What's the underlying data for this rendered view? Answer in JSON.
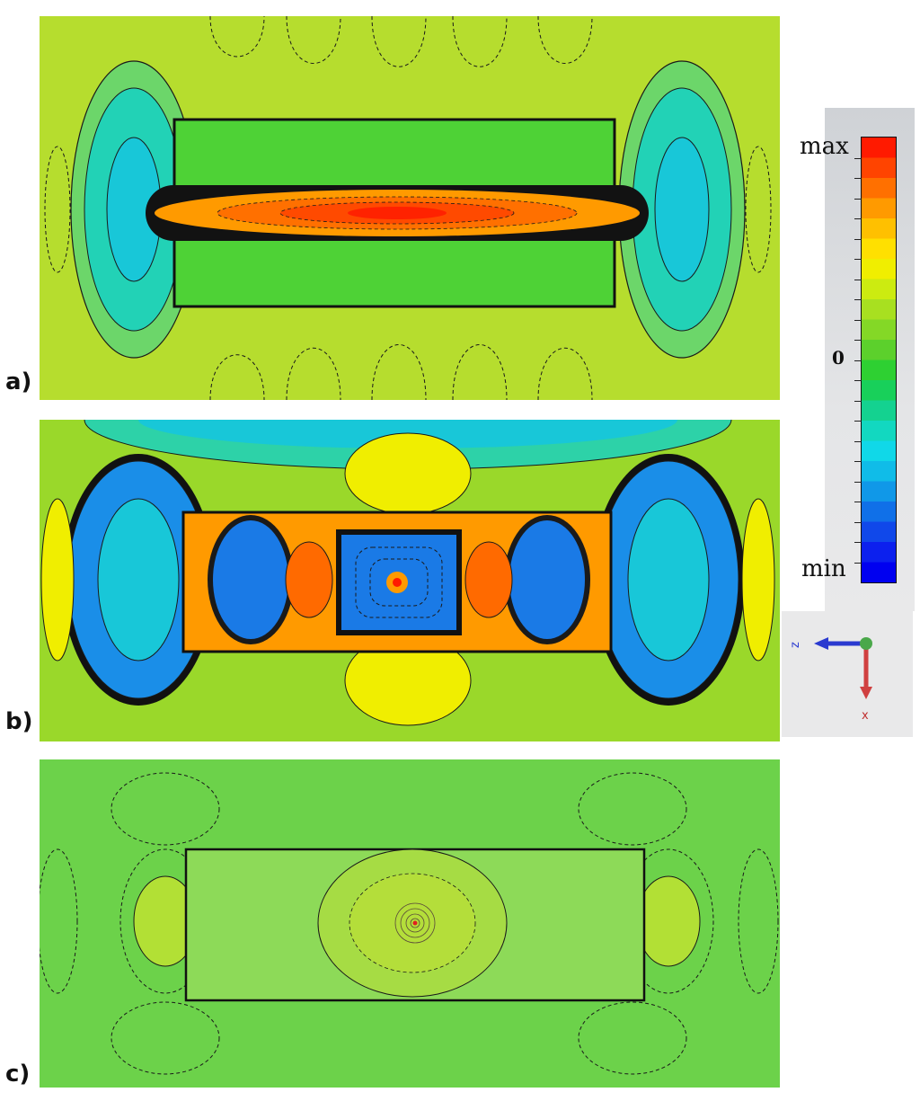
{
  "panels": [
    {
      "label": "a)"
    },
    {
      "label": "b)"
    },
    {
      "label": "c)"
    }
  ],
  "colorbar": {
    "max_label": "max",
    "mid_label": "0",
    "min_label": "min",
    "colors": [
      "#ff1a00",
      "#ff4400",
      "#ff7000",
      "#ff9a00",
      "#ffc000",
      "#ffe000",
      "#f0ee00",
      "#cceb10",
      "#a8e020",
      "#84d826",
      "#5cd02c",
      "#2ed032",
      "#18d05a",
      "#14d290",
      "#12d8c0",
      "#10d8e8",
      "#10bce8",
      "#1098e8",
      "#1070e8",
      "#1048ea",
      "#0c20ee",
      "#0000f0"
    ]
  },
  "axes": {
    "z_label": "z",
    "x_label": "x"
  }
}
